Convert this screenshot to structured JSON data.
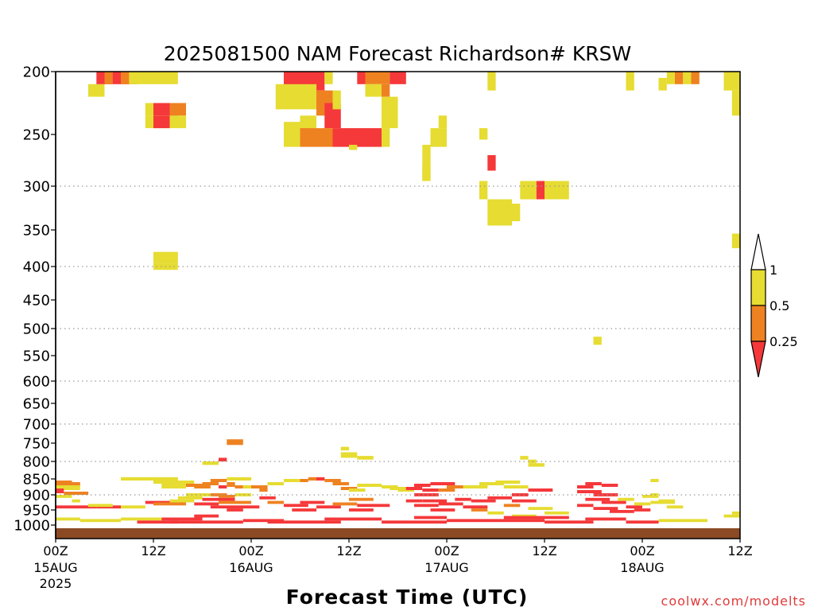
{
  "chart_data": {
    "type": "heatmap",
    "title": "2025081500 NAM Forecast Richardson# KRSW",
    "xlabel": "Forecast Time (UTC)",
    "credit": "coolwx.com/modelts",
    "y_axis": {
      "ticks": [
        "200",
        "250",
        "300",
        "350",
        "400",
        "450",
        "500",
        "550",
        "600",
        "650",
        "700",
        "750",
        "800",
        "850",
        "900",
        "950",
        "1000"
      ],
      "gridlines": [
        300,
        400,
        500,
        600,
        700,
        800,
        900
      ],
      "range": [
        200,
        1000
      ]
    },
    "x_axis": {
      "range_hours": [
        0,
        84
      ],
      "ticks": [
        {
          "h": 0,
          "l1": "00Z",
          "l2": "15AUG",
          "l3": "2025"
        },
        {
          "h": 12,
          "l1": "12Z",
          "l2": "",
          "l3": ""
        },
        {
          "h": 24,
          "l1": "00Z",
          "l2": "16AUG",
          "l3": ""
        },
        {
          "h": 36,
          "l1": "12Z",
          "l2": "",
          "l3": ""
        },
        {
          "h": 48,
          "l1": "00Z",
          "l2": "17AUG",
          "l3": ""
        },
        {
          "h": 60,
          "l1": "12Z",
          "l2": "",
          "l3": ""
        },
        {
          "h": 72,
          "l1": "00Z",
          "l2": "18AUG",
          "l3": ""
        },
        {
          "h": 84,
          "l1": "12Z",
          "l2": "",
          "l3": ""
        }
      ]
    },
    "legend": {
      "placement": "right",
      "colorbar": [
        {
          "label": "1",
          "color": "#e6dc32"
        },
        {
          "label": "0.5",
          "color": "#ee8221"
        },
        {
          "label": "0.25",
          "color": "#f5383a"
        }
      ],
      "top_extension": "#ffffff",
      "bottom_extension": "#f5383a"
    },
    "levels": {
      "1": "#e6dc32",
      "2": "#ee8221",
      "3": "#f5383a"
    },
    "surface_color": "#8b4a24",
    "cells": [
      [
        4,
        6,
        210,
        220,
        1
      ],
      [
        5,
        7,
        200,
        210,
        3
      ],
      [
        6,
        7,
        200,
        210,
        2
      ],
      [
        7,
        9,
        200,
        210,
        3
      ],
      [
        8,
        10,
        200,
        210,
        2
      ],
      [
        9,
        15,
        200,
        210,
        1
      ],
      [
        11,
        12,
        225,
        235,
        1
      ],
      [
        12,
        15,
        225,
        235,
        3
      ],
      [
        14,
        16,
        225,
        235,
        2
      ],
      [
        11,
        16,
        235,
        245,
        1
      ],
      [
        12,
        14,
        235,
        245,
        3
      ],
      [
        12,
        15,
        380,
        395,
        1
      ],
      [
        12,
        15,
        395,
        405,
        1
      ],
      [
        28,
        33,
        200,
        215,
        3
      ],
      [
        33,
        34,
        200,
        210,
        1
      ],
      [
        27,
        32,
        210,
        230,
        1
      ],
      [
        32,
        34,
        215,
        235,
        2
      ],
      [
        33,
        35,
        225,
        245,
        3
      ],
      [
        34,
        35,
        215,
        230,
        1
      ],
      [
        30,
        32,
        235,
        255,
        1
      ],
      [
        28,
        30,
        240,
        262,
        1
      ],
      [
        30,
        34,
        245,
        262,
        2
      ],
      [
        34,
        40,
        245,
        262,
        3
      ],
      [
        36,
        37,
        260,
        265,
        1
      ],
      [
        37,
        38,
        200,
        210,
        3
      ],
      [
        38,
        41,
        200,
        210,
        2
      ],
      [
        41,
        43,
        200,
        210,
        3
      ],
      [
        38,
        40,
        210,
        220,
        1
      ],
      [
        40,
        41,
        210,
        220,
        2
      ],
      [
        40,
        42,
        220,
        245,
        1
      ],
      [
        40,
        41,
        245,
        262,
        1
      ],
      [
        45,
        46,
        280,
        295,
        1
      ],
      [
        45,
        46,
        260,
        295,
        1
      ],
      [
        46,
        48,
        255,
        262,
        1
      ],
      [
        47,
        48,
        235,
        245,
        1
      ],
      [
        46,
        48,
        245,
        255,
        1
      ],
      [
        53,
        54,
        200,
        215,
        1
      ],
      [
        52,
        53,
        245,
        255,
        1
      ],
      [
        53,
        54,
        270,
        285,
        3
      ],
      [
        52,
        53,
        295,
        315,
        1
      ],
      [
        53,
        56,
        315,
        345,
        1
      ],
      [
        56,
        57,
        320,
        340,
        1
      ],
      [
        57,
        59,
        295,
        315,
        1
      ],
      [
        59,
        60,
        295,
        315,
        3
      ],
      [
        60,
        63,
        295,
        315,
        1
      ],
      [
        70,
        71,
        200,
        215,
        1
      ],
      [
        74,
        75,
        205,
        215,
        1
      ],
      [
        75,
        76,
        200,
        210,
        1
      ],
      [
        76,
        77,
        200,
        210,
        2
      ],
      [
        77,
        78,
        200,
        210,
        1
      ],
      [
        78,
        79,
        200,
        210,
        2
      ],
      [
        82,
        84,
        200,
        215,
        1
      ],
      [
        83,
        84,
        215,
        235,
        1
      ],
      [
        83,
        84,
        355,
        375,
        1
      ],
      [
        66,
        67,
        515,
        530,
        1
      ],
      [
        21,
        23,
        740,
        755,
        2
      ],
      [
        20,
        21,
        790,
        800,
        3
      ],
      [
        18,
        20,
        800,
        810,
        1
      ],
      [
        35,
        36,
        760,
        770,
        1
      ],
      [
        35,
        37,
        775,
        790,
        1
      ],
      [
        37,
        39,
        785,
        795,
        1
      ],
      [
        57,
        58,
        785,
        795,
        1
      ],
      [
        58,
        59,
        795,
        805,
        1
      ],
      [
        58,
        60,
        805,
        815,
        1
      ],
      [
        0,
        2,
        855,
        870,
        2
      ],
      [
        2,
        3,
        860,
        875,
        2
      ],
      [
        0,
        3,
        870,
        885,
        1
      ],
      [
        0,
        1,
        880,
        895,
        3
      ],
      [
        1,
        4,
        890,
        900,
        2
      ],
      [
        0,
        2,
        900,
        910,
        1
      ],
      [
        2,
        3,
        915,
        925,
        1
      ],
      [
        0,
        2,
        935,
        945,
        3
      ],
      [
        2,
        5,
        935,
        945,
        3
      ],
      [
        5,
        8,
        935,
        945,
        3
      ],
      [
        8,
        11,
        935,
        945,
        1
      ],
      [
        4,
        7,
        930,
        940,
        1
      ],
      [
        8,
        15,
        845,
        855,
        1
      ],
      [
        12,
        17,
        855,
        865,
        1
      ],
      [
        13,
        16,
        865,
        880,
        1
      ],
      [
        16,
        18,
        865,
        875,
        2
      ],
      [
        17,
        19,
        870,
        880,
        2
      ],
      [
        18,
        20,
        860,
        870,
        2
      ],
      [
        19,
        21,
        850,
        860,
        2
      ],
      [
        20,
        21,
        870,
        880,
        3
      ],
      [
        21,
        22,
        860,
        875,
        2
      ],
      [
        21,
        24,
        845,
        855,
        1
      ],
      [
        22,
        23,
        870,
        880,
        2
      ],
      [
        23,
        24,
        870,
        880,
        1
      ],
      [
        24,
        26,
        870,
        880,
        2
      ],
      [
        25,
        26,
        880,
        890,
        2
      ],
      [
        11,
        14,
        920,
        930,
        3
      ],
      [
        12,
        16,
        925,
        935,
        2
      ],
      [
        14,
        17,
        915,
        925,
        1
      ],
      [
        15,
        18,
        905,
        915,
        1
      ],
      [
        16,
        19,
        895,
        905,
        1
      ],
      [
        19,
        21,
        895,
        905,
        2
      ],
      [
        20,
        22,
        900,
        910,
        2
      ],
      [
        22,
        24,
        895,
        905,
        1
      ],
      [
        17,
        20,
        925,
        935,
        3
      ],
      [
        18,
        22,
        910,
        920,
        3
      ],
      [
        19,
        22,
        935,
        945,
        3
      ],
      [
        20,
        24,
        920,
        930,
        2
      ],
      [
        21,
        23,
        945,
        955,
        3
      ],
      [
        22,
        25,
        935,
        945,
        3
      ],
      [
        25,
        27,
        905,
        915,
        3
      ],
      [
        26,
        28,
        920,
        930,
        2
      ],
      [
        28,
        31,
        930,
        940,
        3
      ],
      [
        30,
        33,
        920,
        930,
        3
      ],
      [
        29,
        32,
        945,
        955,
        3
      ],
      [
        32,
        35,
        935,
        945,
        3
      ],
      [
        34,
        37,
        925,
        935,
        2
      ],
      [
        36,
        39,
        910,
        920,
        2
      ],
      [
        37,
        41,
        930,
        940,
        3
      ],
      [
        36,
        39,
        945,
        955,
        3
      ],
      [
        26,
        28,
        860,
        870,
        1
      ],
      [
        28,
        30,
        850,
        860,
        1
      ],
      [
        30,
        31,
        850,
        860,
        2
      ],
      [
        31,
        32,
        845,
        855,
        2
      ],
      [
        32,
        33,
        845,
        855,
        3
      ],
      [
        33,
        35,
        850,
        860,
        2
      ],
      [
        34,
        36,
        860,
        870,
        2
      ],
      [
        35,
        37,
        875,
        885,
        2
      ],
      [
        36,
        38,
        880,
        890,
        1
      ],
      [
        37,
        40,
        865,
        875,
        1
      ],
      [
        40,
        42,
        870,
        880,
        1
      ],
      [
        41,
        43,
        875,
        885,
        1
      ],
      [
        42,
        44,
        880,
        890,
        1
      ],
      [
        43,
        45,
        875,
        885,
        3
      ],
      [
        44,
        46,
        865,
        875,
        3
      ],
      [
        44,
        47,
        895,
        905,
        3
      ],
      [
        45,
        47,
        880,
        890,
        3
      ],
      [
        46,
        49,
        860,
        870,
        3
      ],
      [
        47,
        49,
        880,
        890,
        2
      ],
      [
        48,
        50,
        870,
        880,
        2
      ],
      [
        43,
        45,
        915,
        925,
        3
      ],
      [
        44,
        47,
        930,
        940,
        3
      ],
      [
        45,
        48,
        915,
        925,
        3
      ],
      [
        46,
        49,
        945,
        955,
        3
      ],
      [
        47,
        50,
        925,
        935,
        3
      ],
      [
        49,
        51,
        910,
        920,
        3
      ],
      [
        50,
        53,
        935,
        945,
        3
      ],
      [
        51,
        54,
        915,
        925,
        3
      ],
      [
        50,
        53,
        870,
        880,
        1
      ],
      [
        52,
        55,
        860,
        870,
        1
      ],
      [
        54,
        57,
        855,
        865,
        1
      ],
      [
        55,
        58,
        870,
        880,
        1
      ],
      [
        58,
        60,
        880,
        890,
        1
      ],
      [
        56,
        58,
        895,
        905,
        3
      ],
      [
        58,
        61,
        880,
        890,
        3
      ],
      [
        53,
        56,
        905,
        915,
        3
      ],
      [
        56,
        59,
        915,
        925,
        3
      ],
      [
        55,
        57,
        930,
        940,
        2
      ],
      [
        51,
        53,
        945,
        955,
        2
      ],
      [
        53,
        55,
        955,
        965,
        1
      ],
      [
        58,
        61,
        940,
        950,
        1
      ],
      [
        60,
        63,
        955,
        965,
        1
      ],
      [
        56,
        59,
        965,
        975,
        1
      ],
      [
        64,
        66,
        870,
        880,
        3
      ],
      [
        65,
        67,
        860,
        870,
        3
      ],
      [
        67,
        69,
        865,
        875,
        3
      ],
      [
        64,
        67,
        885,
        895,
        3
      ],
      [
        66,
        69,
        895,
        905,
        3
      ],
      [
        65,
        68,
        910,
        920,
        3
      ],
      [
        67,
        70,
        920,
        930,
        3
      ],
      [
        64,
        66,
        930,
        940,
        3
      ],
      [
        66,
        69,
        940,
        950,
        3
      ],
      [
        68,
        71,
        950,
        960,
        3
      ],
      [
        70,
        72,
        935,
        945,
        3
      ],
      [
        71,
        73,
        945,
        955,
        3
      ],
      [
        69,
        71,
        910,
        920,
        1
      ],
      [
        71,
        73,
        925,
        935,
        1
      ],
      [
        73,
        74,
        895,
        905,
        1
      ],
      [
        72,
        74,
        900,
        910,
        1
      ],
      [
        73,
        76,
        920,
        930,
        1
      ],
      [
        74,
        76,
        915,
        925,
        1
      ],
      [
        75,
        77,
        935,
        945,
        1
      ],
      [
        73,
        74,
        850,
        860,
        1
      ],
      [
        83,
        84,
        955,
        965,
        1
      ],
      [
        82,
        84,
        965,
        975,
        1
      ],
      [
        0,
        3,
        975,
        985,
        1
      ],
      [
        3,
        8,
        980,
        990,
        1
      ],
      [
        8,
        13,
        975,
        985,
        1
      ],
      [
        10,
        15,
        985,
        995,
        3
      ],
      [
        13,
        18,
        975,
        985,
        3
      ],
      [
        14,
        23,
        985,
        995,
        3
      ],
      [
        17,
        20,
        965,
        975,
        3
      ],
      [
        23,
        28,
        980,
        990,
        3
      ],
      [
        26,
        35,
        985,
        995,
        3
      ],
      [
        33,
        40,
        975,
        985,
        3
      ],
      [
        40,
        48,
        985,
        995,
        3
      ],
      [
        44,
        48,
        970,
        980,
        3
      ],
      [
        48,
        60,
        980,
        990,
        3
      ],
      [
        55,
        63,
        970,
        980,
        3
      ],
      [
        60,
        66,
        985,
        995,
        3
      ],
      [
        65,
        70,
        975,
        985,
        3
      ],
      [
        70,
        74,
        985,
        995,
        3
      ],
      [
        74,
        80,
        980,
        990,
        1
      ]
    ]
  }
}
